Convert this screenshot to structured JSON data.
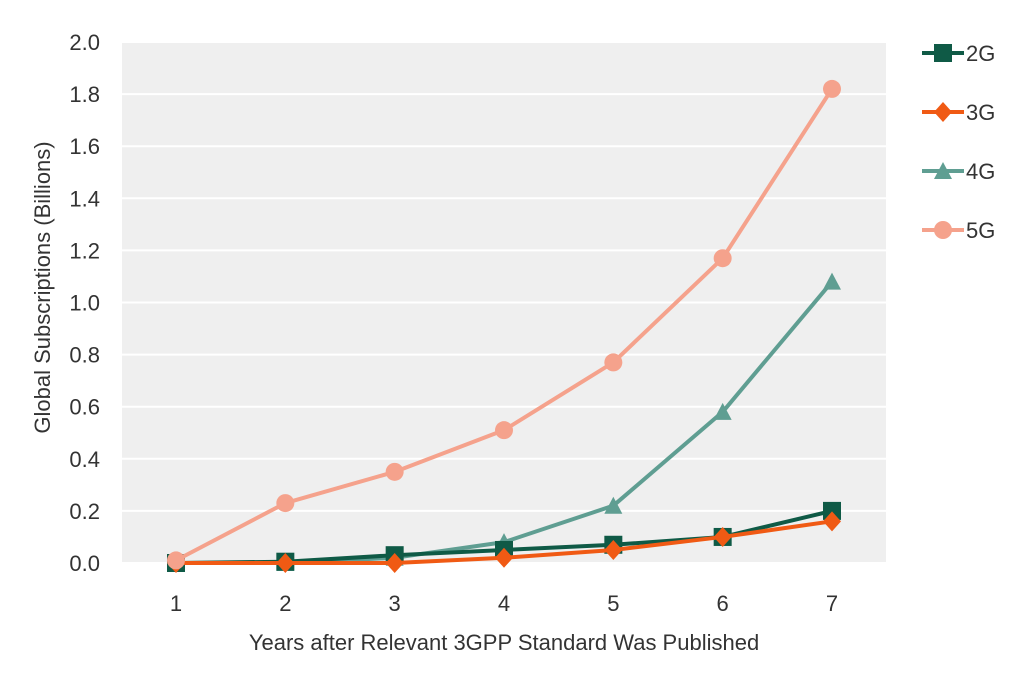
{
  "chart_data": {
    "type": "line",
    "title": "",
    "xlabel": "Years after Relevant 3GPP Standard Was Published",
    "ylabel": "Global Subscriptions (Billions)",
    "x": [
      1,
      2,
      3,
      4,
      5,
      6,
      7
    ],
    "x_tick_labels": [
      "1",
      "2",
      "3",
      "4",
      "5",
      "6",
      "7"
    ],
    "ylim": [
      0,
      2.0
    ],
    "y_ticks": [
      "0.0",
      "0.2",
      "0.4",
      "0.6",
      "0.8",
      "1.0",
      "1.2",
      "1.4",
      "1.6",
      "1.8",
      "2.0"
    ],
    "grid": "horizontal",
    "legend_position": "right",
    "series": [
      {
        "name": "2G",
        "values": [
          0.0,
          0.005,
          0.03,
          0.05,
          0.07,
          0.1,
          0.2
        ],
        "color": "#0f5a46",
        "marker": "square"
      },
      {
        "name": "3G",
        "values": [
          0.0,
          0.0,
          0.0,
          0.02,
          0.05,
          0.1,
          0.16
        ],
        "color": "#f05a14",
        "marker": "diamond"
      },
      {
        "name": "4G",
        "values": [
          0.0,
          0.0,
          0.02,
          0.08,
          0.22,
          0.58,
          1.08
        ],
        "color": "#5f9e92",
        "marker": "triangle"
      },
      {
        "name": "5G",
        "values": [
          0.01,
          0.23,
          0.35,
          0.51,
          0.77,
          1.17,
          1.82
        ],
        "color": "#f5a28c",
        "marker": "circle"
      }
    ],
    "plot_background": "#efefef",
    "gridline_color": "#ffffff"
  }
}
